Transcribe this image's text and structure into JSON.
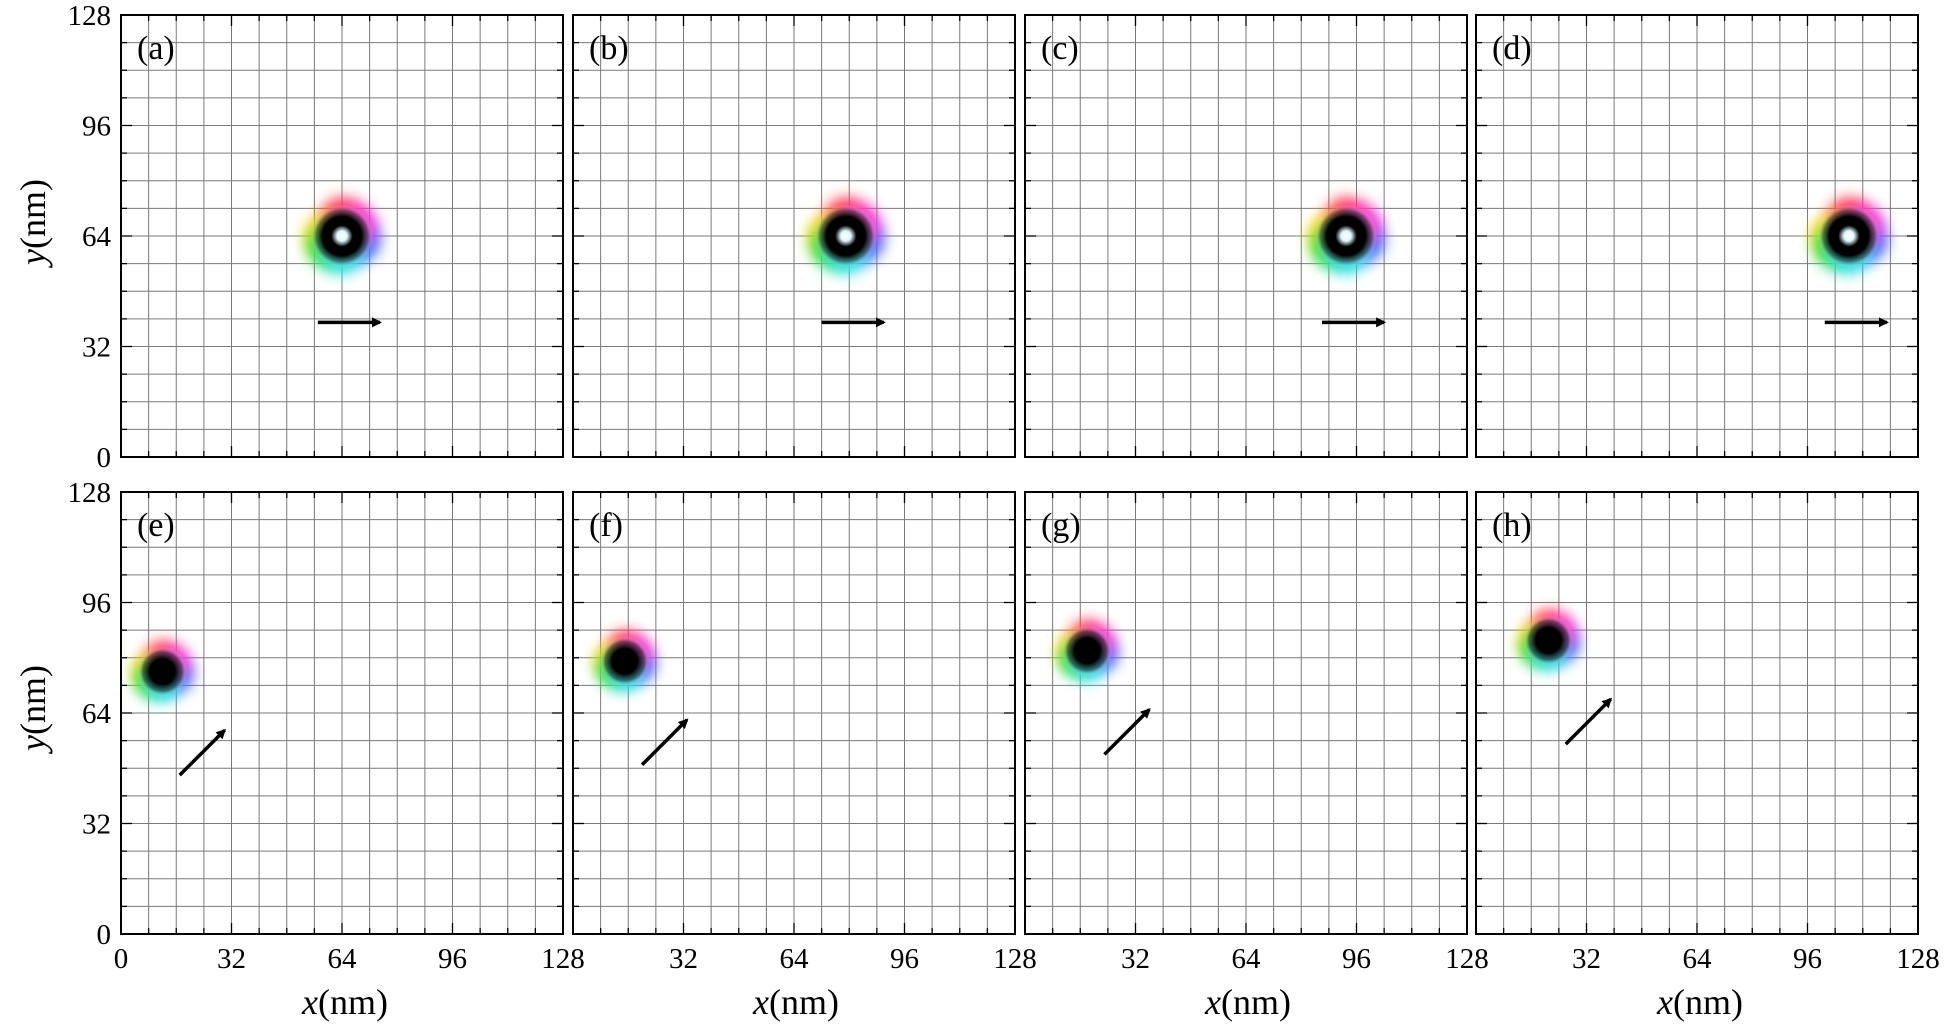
{
  "figure": {
    "ylabel_var": "y",
    "ylabel_unit": "(nm)",
    "xlabel_var": "x",
    "xlabel_unit": "(nm)"
  },
  "chart_data": [
    {
      "type": "scatter",
      "panel": "(a)",
      "xlim": [
        0,
        128
      ],
      "ylim": [
        0,
        128
      ],
      "ticks": [
        0,
        32,
        64,
        96,
        128
      ],
      "grid": true,
      "grid_step": 8,
      "skyrmion": {
        "x": 64,
        "y": 64,
        "style": "ring"
      },
      "arrow_direction": "right",
      "arrow_start": [
        57,
        39
      ],
      "arrow_end": [
        75,
        39
      ]
    },
    {
      "type": "scatter",
      "panel": "(b)",
      "xlim": [
        0,
        128
      ],
      "ylim": [
        0,
        128
      ],
      "ticks": [
        0,
        32,
        64,
        96,
        128
      ],
      "grid": true,
      "grid_step": 8,
      "skyrmion": {
        "x": 79,
        "y": 64,
        "style": "ring"
      },
      "arrow_direction": "right",
      "arrow_start": [
        72,
        39
      ],
      "arrow_end": [
        90,
        39
      ]
    },
    {
      "type": "scatter",
      "panel": "(c)",
      "xlim": [
        0,
        128
      ],
      "ylim": [
        0,
        128
      ],
      "ticks": [
        0,
        32,
        64,
        96,
        128
      ],
      "grid": true,
      "grid_step": 8,
      "skyrmion": {
        "x": 93,
        "y": 64,
        "style": "ring"
      },
      "arrow_direction": "right",
      "arrow_start": [
        86,
        39
      ],
      "arrow_end": [
        104,
        39
      ]
    },
    {
      "type": "scatter",
      "panel": "(d)",
      "xlim": [
        0,
        128
      ],
      "ylim": [
        0,
        128
      ],
      "ticks": [
        0,
        32,
        64,
        96,
        128
      ],
      "grid": true,
      "grid_step": 8,
      "skyrmion": {
        "x": 108,
        "y": 64,
        "style": "ring"
      },
      "arrow_direction": "right",
      "arrow_start": [
        101,
        39
      ],
      "arrow_end": [
        119,
        39
      ]
    },
    {
      "type": "scatter",
      "panel": "(e)",
      "xlim": [
        0,
        128
      ],
      "ylim": [
        0,
        128
      ],
      "ticks": [
        0,
        32,
        64,
        96,
        128
      ],
      "grid": true,
      "grid_step": 8,
      "skyrmion": {
        "x": 12,
        "y": 76,
        "style": "dot"
      },
      "arrow_direction": "up-right",
      "arrow_start": [
        17,
        46
      ],
      "arrow_end": [
        30,
        59
      ]
    },
    {
      "type": "scatter",
      "panel": "(f)",
      "xlim": [
        0,
        128
      ],
      "ylim": [
        0,
        128
      ],
      "ticks": [
        0,
        32,
        64,
        96,
        128
      ],
      "grid": true,
      "grid_step": 8,
      "skyrmion": {
        "x": 15,
        "y": 79,
        "style": "dot"
      },
      "arrow_direction": "up-right",
      "arrow_start": [
        20,
        49
      ],
      "arrow_end": [
        33,
        62
      ]
    },
    {
      "type": "scatter",
      "panel": "(g)",
      "xlim": [
        0,
        128
      ],
      "ylim": [
        0,
        128
      ],
      "ticks": [
        0,
        32,
        64,
        96,
        128
      ],
      "grid": true,
      "grid_step": 8,
      "skyrmion": {
        "x": 18,
        "y": 82,
        "style": "dot"
      },
      "arrow_direction": "up-right",
      "arrow_start": [
        23,
        52
      ],
      "arrow_end": [
        36,
        65
      ]
    },
    {
      "type": "scatter",
      "panel": "(h)",
      "xlim": [
        0,
        128
      ],
      "ylim": [
        0,
        128
      ],
      "ticks": [
        0,
        32,
        64,
        96,
        128
      ],
      "grid": true,
      "grid_step": 8,
      "skyrmion": {
        "x": 21,
        "y": 85,
        "style": "dot"
      },
      "arrow_direction": "up-right",
      "arrow_start": [
        26,
        55
      ],
      "arrow_end": [
        39,
        68
      ]
    }
  ]
}
